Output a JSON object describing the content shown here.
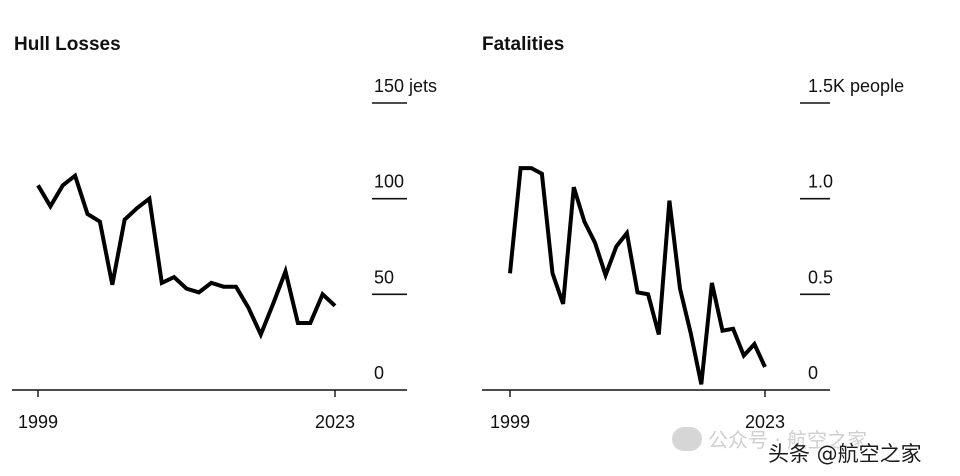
{
  "chart_data": [
    {
      "type": "line",
      "title": "Hull Losses",
      "unit": "jets",
      "x_tick_labels": [
        "1999",
        "2023"
      ],
      "y_tick_labels": [
        "0",
        "50",
        "100",
        "150 jets"
      ],
      "yticks": [
        0,
        50,
        100,
        150
      ],
      "ylim": [
        0,
        150
      ],
      "xlim": [
        1999,
        2023
      ],
      "grid": false,
      "series": [
        {
          "x": [
            1999,
            2000,
            2001,
            2002,
            2003,
            2004,
            2005,
            2006,
            2007,
            2008,
            2009,
            2010,
            2011,
            2012,
            2013,
            2014,
            2015,
            2016,
            2017,
            2018,
            2019,
            2020,
            2021,
            2022,
            2023
          ],
          "values": [
            107,
            96,
            107,
            112,
            92,
            88,
            55,
            89,
            95,
            100,
            56,
            59,
            53,
            51,
            56,
            54,
            54,
            43,
            29,
            45,
            62,
            35,
            35,
            50,
            44
          ]
        }
      ]
    },
    {
      "type": "line",
      "title": "Fatalities",
      "unit": "people",
      "x_tick_labels": [
        "1999",
        "2023"
      ],
      "y_tick_labels": [
        "0",
        "0.5",
        "1.0",
        "1.5K people"
      ],
      "yticks": [
        0,
        0.5,
        1.0,
        1.5
      ],
      "ylim": [
        0,
        1.5
      ],
      "xlim": [
        1999,
        2023
      ],
      "grid": false,
      "series": [
        {
          "x": [
            1999,
            2000,
            2001,
            2002,
            2003,
            2004,
            2005,
            2006,
            2007,
            2008,
            2009,
            2010,
            2011,
            2012,
            2013,
            2014,
            2015,
            2016,
            2017,
            2018,
            2019,
            2020,
            2021,
            2022,
            2023
          ],
          "values": [
            0.61,
            1.16,
            1.16,
            1.13,
            0.61,
            0.45,
            1.06,
            0.88,
            0.77,
            0.6,
            0.75,
            0.82,
            0.51,
            0.5,
            0.29,
            0.99,
            0.53,
            0.3,
            0.03,
            0.56,
            0.31,
            0.32,
            0.18,
            0.24,
            0.12
          ]
        }
      ]
    }
  ],
  "watermark": {
    "back_text": "公众号 · 航空之家",
    "front_text": "头条 @航空之家"
  }
}
